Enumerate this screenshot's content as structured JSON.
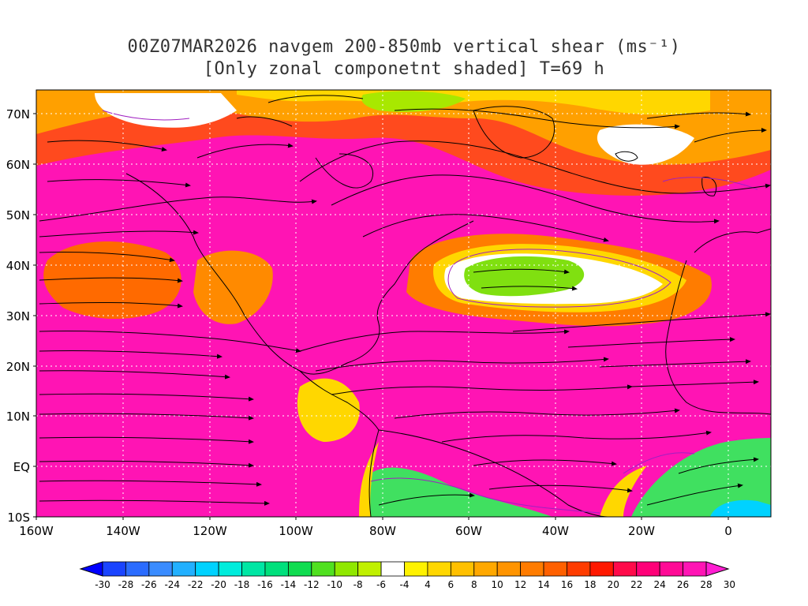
{
  "title": {
    "line1": "00Z07MAR2026 navgem 200-850mb vertical shear (ms⁻¹)",
    "line2": "[Only zonal componetnt shaded] T=69 h"
  },
  "map": {
    "lat_labels": [
      "70N",
      "60N",
      "50N",
      "40N",
      "30N",
      "20N",
      "10N",
      "EQ",
      "10S"
    ],
    "lon_labels": [
      "160W",
      "140W",
      "120W",
      "100W",
      "80W",
      "60W",
      "40W",
      "20W",
      "0"
    ],
    "lon_range": [
      -160,
      10
    ],
    "lat_range": [
      -10,
      75
    ]
  },
  "colorbar": {
    "labels": [
      "-30",
      "-28",
      "-26",
      "-24",
      "-22",
      "-20",
      "-18",
      "-16",
      "-14",
      "-12",
      "-10",
      "-8",
      "-6",
      "-4",
      "4",
      "6",
      "8",
      "10",
      "12",
      "14",
      "16",
      "18",
      "20",
      "22",
      "24",
      "26",
      "28",
      "30"
    ],
    "colors": [
      "#0000ff",
      "#1a44ff",
      "#2b6cff",
      "#3a8cff",
      "#22b0ff",
      "#00d2ff",
      "#00ecdc",
      "#00e6a4",
      "#00e07c",
      "#10dc50",
      "#50e020",
      "#90e800",
      "#c0f000",
      "#ffffff",
      "#fff200",
      "#ffd700",
      "#ffc000",
      "#ffa800",
      "#ff9400",
      "#ff7c00",
      "#ff6000",
      "#ff3c00",
      "#ff1800",
      "#ff0a4a",
      "#ff0078",
      "#ff0a96",
      "#ff14b4",
      "#ff1ed2"
    ]
  }
}
